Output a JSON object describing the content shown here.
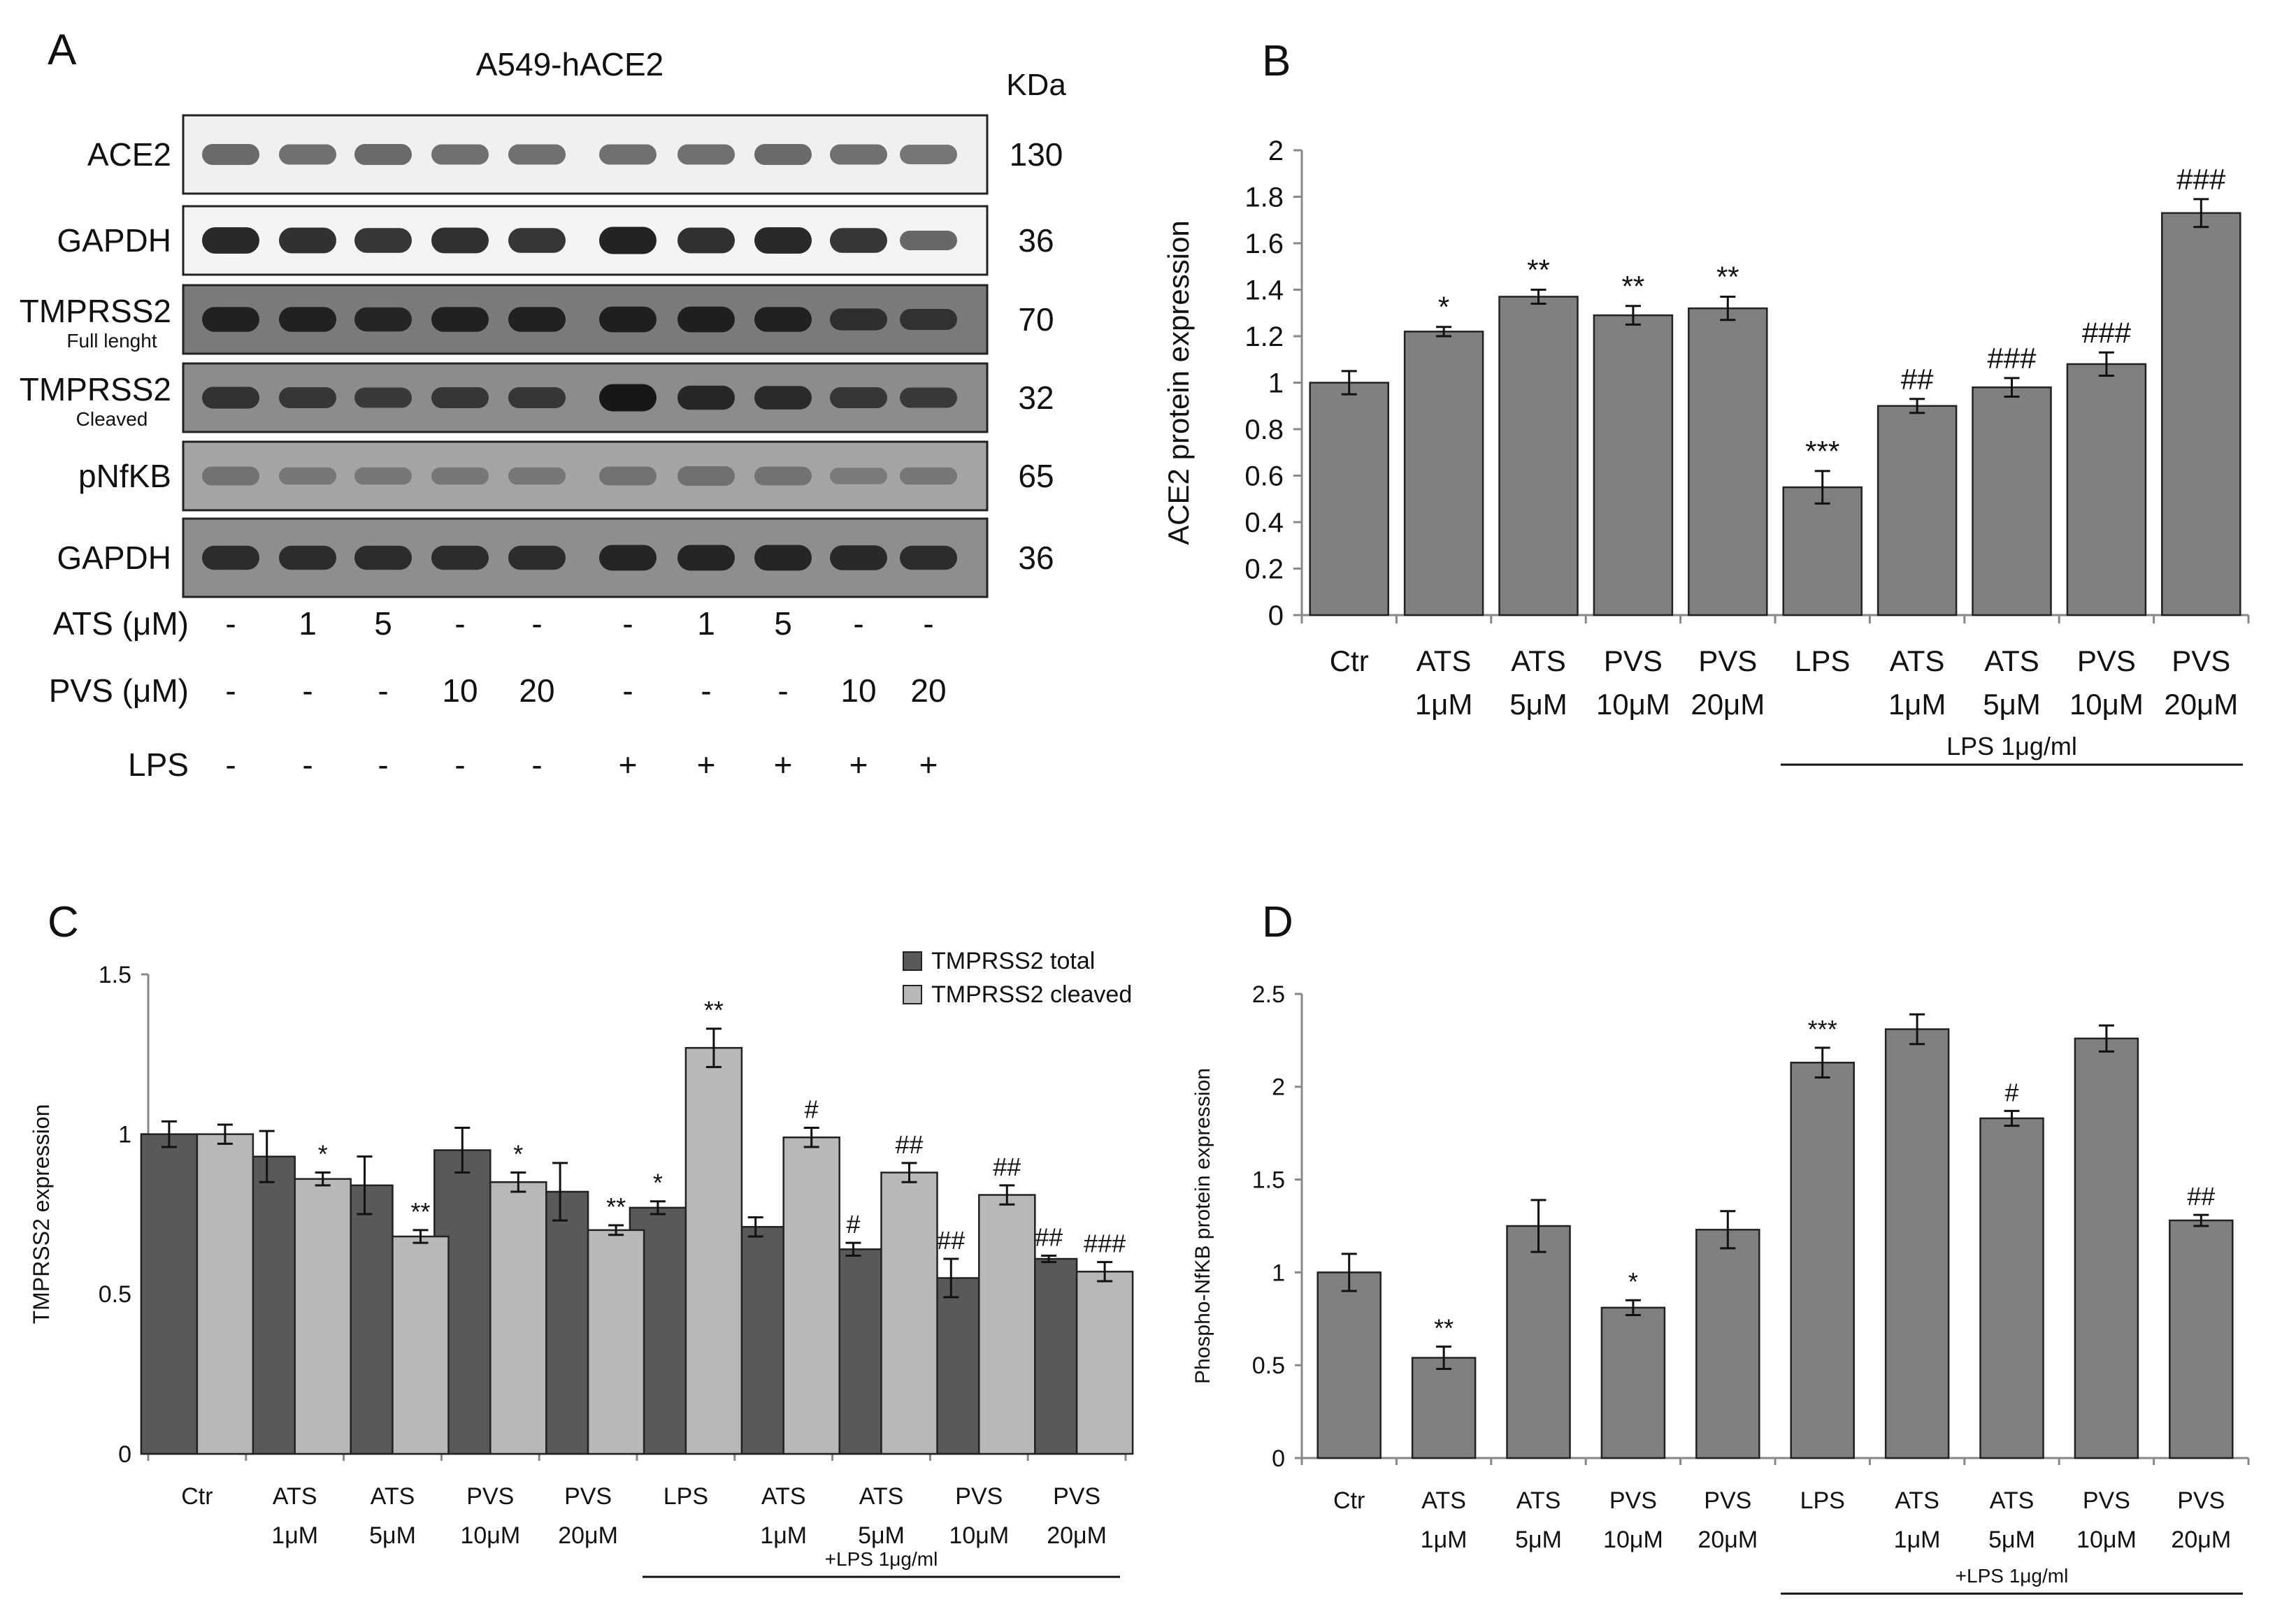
{
  "panels": {
    "A": "A",
    "B": "B",
    "C": "C",
    "D": "D"
  },
  "blot": {
    "cell_line": "A549-hACE2",
    "kda_header": "KDa",
    "bands": [
      {
        "label": "ACE2",
        "sublabel": "",
        "kda": "130",
        "bg": "#f0f0f0",
        "band": "#2b2b2b",
        "intensity": [
          0.55,
          0.5,
          0.55,
          0.5,
          0.5,
          0.5,
          0.5,
          0.55,
          0.5,
          0.45
        ]
      },
      {
        "label": "GAPDH",
        "sublabel": "",
        "kda": "36",
        "bg": "#f4f4f4",
        "band": "#101010",
        "intensity": [
          0.9,
          0.85,
          0.8,
          0.85,
          0.8,
          0.95,
          0.85,
          0.9,
          0.8,
          0.45
        ]
      },
      {
        "label": "TMPRSS2",
        "sublabel": "Full lenght",
        "kda": "70",
        "bg": "#7a7a7a",
        "band": "#101010",
        "intensity": [
          0.8,
          0.8,
          0.75,
          0.8,
          0.8,
          0.85,
          0.85,
          0.8,
          0.6,
          0.55
        ]
      },
      {
        "label": "TMPRSS2",
        "sublabel": "Cleaved",
        "kda": "32",
        "bg": "#8c8c8c",
        "band": "#0d0d0d",
        "intensity": [
          0.6,
          0.55,
          0.5,
          0.55,
          0.55,
          0.95,
          0.75,
          0.7,
          0.55,
          0.5
        ]
      },
      {
        "label": "pNfKB",
        "sublabel": "",
        "kda": "65",
        "bg": "#a4a4a4",
        "band": "#505050",
        "intensity": [
          0.4,
          0.3,
          0.3,
          0.3,
          0.3,
          0.4,
          0.45,
          0.4,
          0.25,
          0.3
        ]
      },
      {
        "label": "GAPDH",
        "sublabel": "",
        "kda": "36",
        "bg": "#8e8e8e",
        "band": "#141414",
        "intensity": [
          0.75,
          0.75,
          0.75,
          0.75,
          0.75,
          0.85,
          0.85,
          0.85,
          0.8,
          0.75
        ]
      }
    ],
    "treatments": [
      {
        "label": "ATS (μM)",
        "values": [
          "-",
          "1",
          "5",
          "-",
          "-",
          "-",
          "1",
          "5",
          "-",
          "-"
        ]
      },
      {
        "label": "PVS (μM)",
        "values": [
          "-",
          "-",
          "-",
          "10",
          "20",
          "-",
          "-",
          "-",
          "10",
          "20"
        ]
      },
      {
        "label": "LPS",
        "values": [
          "-",
          "-",
          "-",
          "-",
          "-",
          "+",
          "+",
          "+",
          "+",
          "+"
        ]
      }
    ]
  },
  "chart_data": [
    {
      "panel": "B",
      "type": "bar",
      "categories": [
        [
          "Ctr"
        ],
        [
          "ATS",
          "1μM"
        ],
        [
          "ATS",
          "5μM"
        ],
        [
          "PVS",
          "10μM"
        ],
        [
          "PVS",
          "20μM"
        ],
        [
          "LPS"
        ],
        [
          "ATS",
          "1μM"
        ],
        [
          "ATS",
          "5μM"
        ],
        [
          "PVS",
          "10μM"
        ],
        [
          "PVS",
          "20μM"
        ]
      ],
      "series": [
        {
          "name": "ACE2",
          "color": "#808080",
          "values": [
            1.0,
            1.22,
            1.37,
            1.29,
            1.32,
            0.55,
            0.9,
            0.98,
            1.08,
            1.73
          ],
          "errors": [
            0.05,
            0.02,
            0.03,
            0.04,
            0.05,
            0.07,
            0.03,
            0.04,
            0.05,
            0.06
          ],
          "annotations": [
            "",
            "*",
            "**",
            "**",
            "**",
            "***",
            "##",
            "###",
            "###",
            "###"
          ]
        }
      ],
      "title": "",
      "xlabel": "",
      "ylabel": "ACE2  protein expression",
      "ylim": [
        0,
        2
      ],
      "yticks": [
        "0",
        "0.2",
        "0.4",
        "0.6",
        "0.8",
        "1",
        "1.2",
        "1.4",
        "1.6",
        "1.8",
        "2"
      ],
      "ytick_values": [
        0,
        0.2,
        0.4,
        0.6,
        0.8,
        1.0,
        1.2,
        1.4,
        1.6,
        1.8,
        2.0
      ],
      "group_label": "LPS 1μg/ml",
      "group_range": [
        5,
        9
      ],
      "legend": null
    },
    {
      "panel": "C",
      "type": "bar",
      "categories": [
        [
          "Ctr"
        ],
        [
          "ATS",
          "1μM"
        ],
        [
          "ATS",
          "5μM"
        ],
        [
          "PVS",
          "10μM"
        ],
        [
          "PVS",
          "20μM"
        ],
        [
          "LPS"
        ],
        [
          "ATS",
          "1μM"
        ],
        [
          "ATS",
          "5μM"
        ],
        [
          "PVS",
          "10μM"
        ],
        [
          "PVS",
          "20μM"
        ]
      ],
      "series": [
        {
          "name": "TMPRSS2 total",
          "color": "#595959",
          "values": [
            1.0,
            0.93,
            0.84,
            0.95,
            0.82,
            0.77,
            0.71,
            0.64,
            0.55,
            0.61
          ],
          "errors": [
            0.04,
            0.08,
            0.09,
            0.07,
            0.09,
            0.02,
            0.03,
            0.02,
            0.06,
            0.01
          ],
          "annotations": [
            "",
            "",
            "",
            "",
            "",
            "*",
            "",
            "#",
            "##",
            "##"
          ]
        },
        {
          "name": "TMPRSS2 cleaved",
          "color": "#b8b8b8",
          "values": [
            1.0,
            0.86,
            0.68,
            0.85,
            0.7,
            1.27,
            0.99,
            0.88,
            0.81,
            0.57
          ],
          "errors": [
            0.03,
            0.02,
            0.02,
            0.03,
            0.015,
            0.06,
            0.03,
            0.03,
            0.03,
            0.03
          ],
          "annotations": [
            "",
            "*",
            "**",
            "*",
            "**",
            "**",
            "#",
            "##",
            "##",
            "###"
          ]
        }
      ],
      "title": "",
      "xlabel": "",
      "ylabel": "TMPRSS2 expression",
      "ylim": [
        0,
        1.5
      ],
      "yticks": [
        "0",
        "0.5",
        "1",
        "1.5"
      ],
      "ytick_values": [
        0,
        0.5,
        1.0,
        1.5
      ],
      "group_label": "+LPS 1μg/ml",
      "group_range": [
        5,
        9
      ],
      "legend": "top-right"
    },
    {
      "panel": "D",
      "type": "bar",
      "categories": [
        [
          "Ctr"
        ],
        [
          "ATS",
          "1μM"
        ],
        [
          "ATS",
          "5μM"
        ],
        [
          "PVS",
          "10μM"
        ],
        [
          "PVS",
          "20μM"
        ],
        [
          "LPS"
        ],
        [
          "ATS",
          "1μM"
        ],
        [
          "ATS",
          "5μM"
        ],
        [
          "PVS",
          "10μM"
        ],
        [
          "PVS",
          "20μM"
        ]
      ],
      "series": [
        {
          "name": "Phospho-NfKB",
          "color": "#808080",
          "values": [
            1.0,
            0.54,
            1.25,
            0.81,
            1.23,
            2.13,
            2.31,
            1.83,
            2.26,
            1.28
          ],
          "errors": [
            0.1,
            0.06,
            0.14,
            0.04,
            0.1,
            0.08,
            0.08,
            0.04,
            0.07,
            0.03
          ],
          "annotations": [
            "",
            "**",
            "",
            "*",
            "",
            "***",
            "",
            "#",
            "",
            "##"
          ]
        }
      ],
      "title": "",
      "xlabel": "",
      "ylabel": "Phospho-NfKB protein expression",
      "ylim": [
        0,
        2.5
      ],
      "yticks": [
        "0",
        "0.5",
        "1",
        "1.5",
        "2",
        "2.5"
      ],
      "ytick_values": [
        0,
        0.5,
        1.0,
        1.5,
        2.0,
        2.5
      ],
      "group_label": "+LPS 1μg/ml",
      "group_range": [
        5,
        9
      ],
      "legend": null
    }
  ]
}
